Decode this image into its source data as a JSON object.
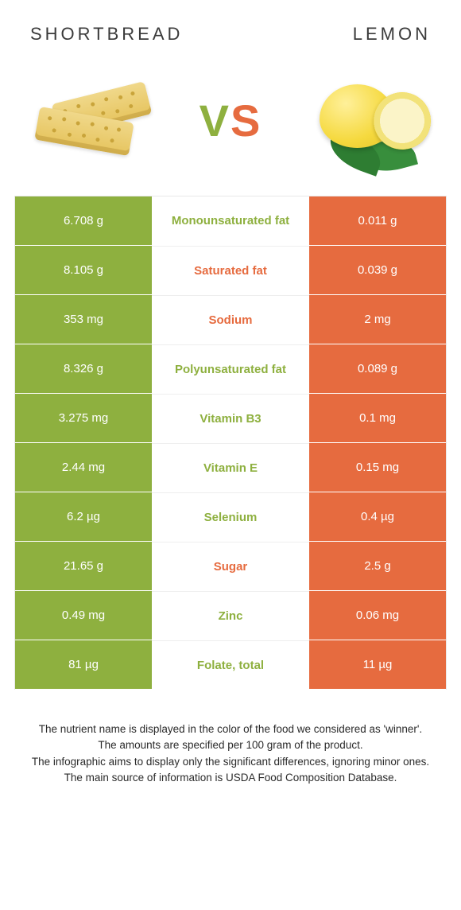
{
  "header": {
    "left_title": "SHORTBREAD",
    "right_title": "LEMON"
  },
  "colors": {
    "left": "#8eb03f",
    "right": "#e66b3f",
    "row_border": "#ffffff",
    "mid_border": "#eeeeee",
    "text_on_color": "#ffffff",
    "body_bg": "#ffffff"
  },
  "vs": {
    "v": "V",
    "s": "S"
  },
  "table": {
    "rows": [
      {
        "left": "6.708 g",
        "label": "Monounsaturated fat",
        "right": "0.011 g",
        "winner": "left"
      },
      {
        "left": "8.105 g",
        "label": "Saturated fat",
        "right": "0.039 g",
        "winner": "right"
      },
      {
        "left": "353 mg",
        "label": "Sodium",
        "right": "2 mg",
        "winner": "right"
      },
      {
        "left": "8.326 g",
        "label": "Polyunsaturated fat",
        "right": "0.089 g",
        "winner": "left"
      },
      {
        "left": "3.275 mg",
        "label": "Vitamin B3",
        "right": "0.1 mg",
        "winner": "left"
      },
      {
        "left": "2.44 mg",
        "label": "Vitamin E",
        "right": "0.15 mg",
        "winner": "left"
      },
      {
        "left": "6.2 µg",
        "label": "Selenium",
        "right": "0.4 µg",
        "winner": "left"
      },
      {
        "left": "21.65 g",
        "label": "Sugar",
        "right": "2.5 g",
        "winner": "right"
      },
      {
        "left": "0.49 mg",
        "label": "Zinc",
        "right": "0.06 mg",
        "winner": "left"
      },
      {
        "left": "81 µg",
        "label": "Folate, total",
        "right": "11 µg",
        "winner": "left"
      }
    ]
  },
  "footer": {
    "lines": [
      "The nutrient name is displayed in the color of the food we considered as 'winner'.",
      "The amounts are specified per 100 gram of the product.",
      "The infographic aims to display only the significant differences, ignoring minor ones.",
      "The main source of information is USDA Food Composition Database."
    ]
  }
}
